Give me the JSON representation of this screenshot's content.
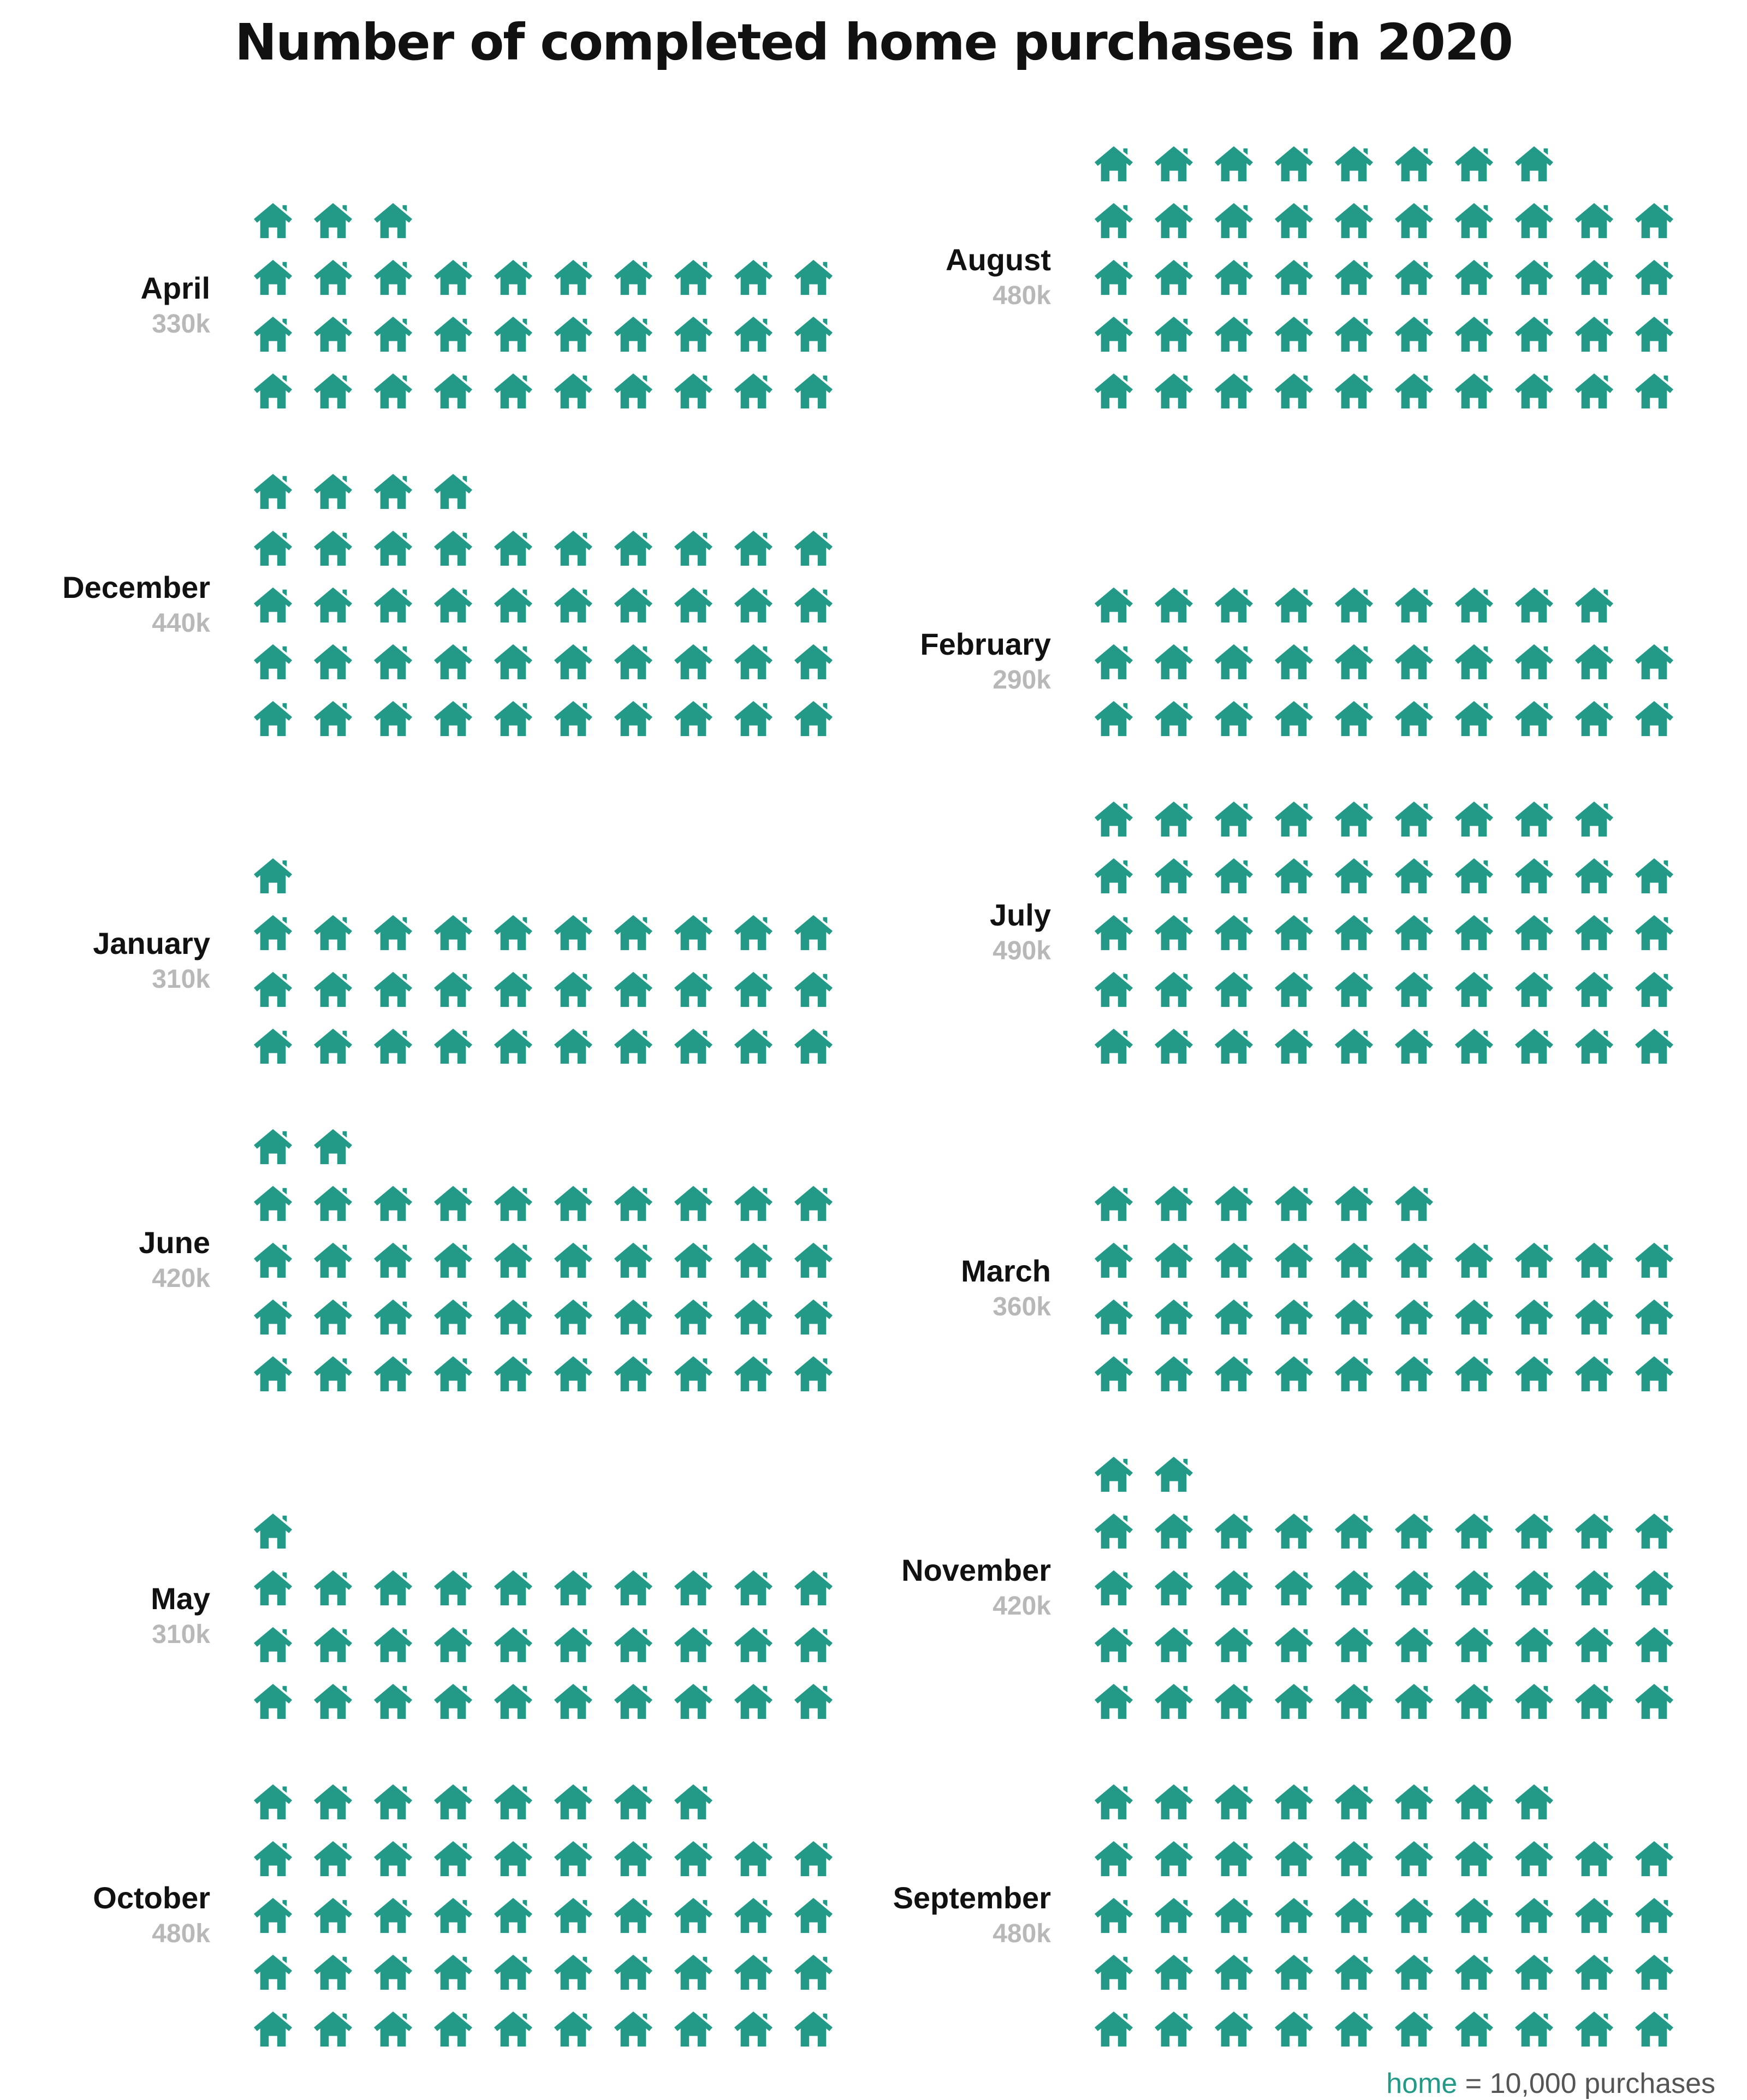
{
  "chart_data": {
    "type": "pictogram",
    "title": "Number of completed home purchases in 2020",
    "icon": "home",
    "icon_color": "#239a87",
    "unit_value": 10000,
    "unit_label": "= 10,000 purchases",
    "icons_per_row": 10,
    "panels": [
      {
        "month": "April",
        "label": "330k",
        "value": 330000
      },
      {
        "month": "August",
        "label": "480k",
        "value": 480000
      },
      {
        "month": "December",
        "label": "440k",
        "value": 440000
      },
      {
        "month": "February",
        "label": "290k",
        "value": 290000
      },
      {
        "month": "January",
        "label": "310k",
        "value": 310000
      },
      {
        "month": "July",
        "label": "490k",
        "value": 490000
      },
      {
        "month": "June",
        "label": "420k",
        "value": 420000
      },
      {
        "month": "March",
        "label": "360k",
        "value": 360000
      },
      {
        "month": "May",
        "label": "310k",
        "value": 310000
      },
      {
        "month": "November",
        "label": "420k",
        "value": 420000
      },
      {
        "month": "October",
        "label": "480k",
        "value": 480000
      },
      {
        "month": "September",
        "label": "480k",
        "value": 480000
      }
    ]
  },
  "legend": {
    "icon_word": "home",
    "text": "= 10,000 purchases"
  },
  "colors": {
    "accent": "#239a87",
    "value_label": "#b8b8b8"
  }
}
